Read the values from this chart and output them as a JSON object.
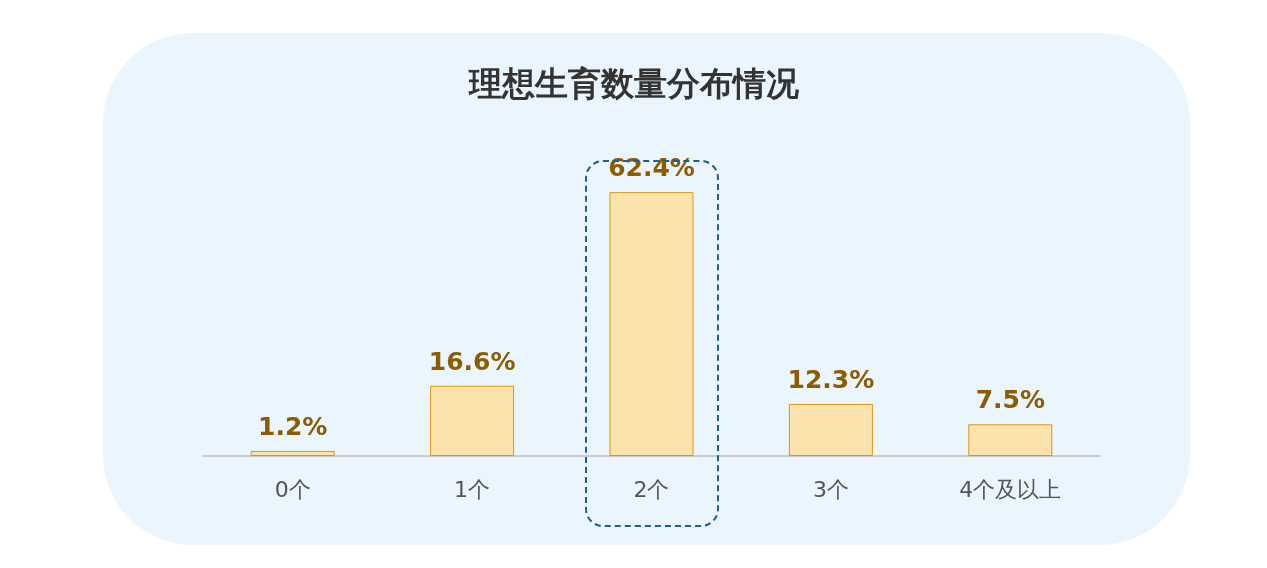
{
  "chart_data": {
    "type": "bar",
    "title": "理想生育数量分布情况",
    "categories": [
      "0个",
      "1个",
      "2个",
      "3个",
      "4个及以上"
    ],
    "values": [
      1.2,
      16.6,
      62.4,
      12.3,
      7.5
    ],
    "color": "#fbe3ae",
    "value_labels": [
      "1.2%",
      "16.6%",
      "62.4%",
      "12.3%",
      "7.5%"
    ],
    "tick_labels": "x"
  }
}
